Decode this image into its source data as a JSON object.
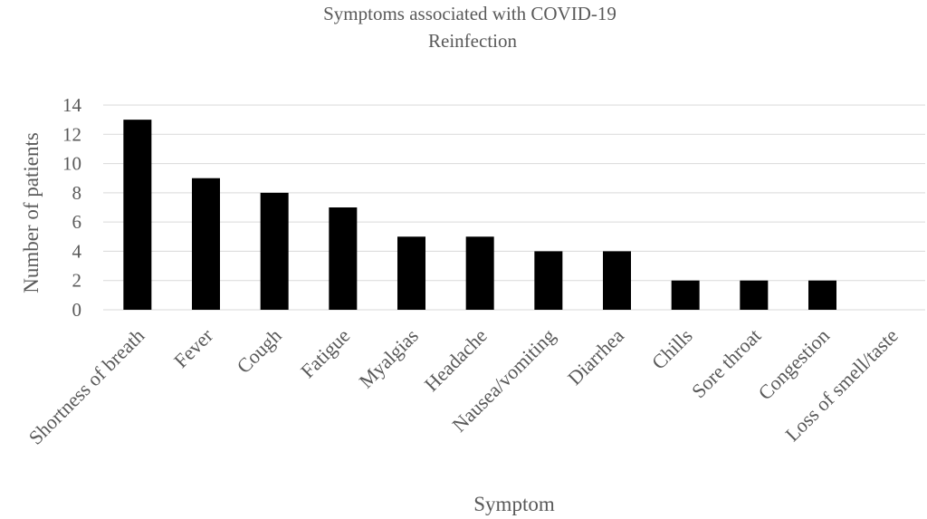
{
  "chart_data": {
    "type": "bar",
    "title_lines": [
      "Symptoms associated with COVID-19",
      "Reinfection"
    ],
    "xlabel": "Symptom",
    "ylabel": "Number of patients",
    "ylim": [
      0,
      14
    ],
    "yticks": [
      0,
      2,
      4,
      6,
      8,
      10,
      12,
      14
    ],
    "grid": true,
    "legend": "none",
    "bar_color": "#000000",
    "categories": [
      "Shortness of breath",
      "Fever",
      "Cough",
      "Fatigue",
      "Myalgias",
      "Headache",
      "Nausea/vomiting",
      "Diarrhea",
      "Chills",
      "Sore throat",
      "Congestion",
      "Loss of smell/taste"
    ],
    "values": [
      13,
      9,
      8,
      7,
      5,
      5,
      4,
      4,
      2,
      2,
      2,
      0
    ]
  }
}
